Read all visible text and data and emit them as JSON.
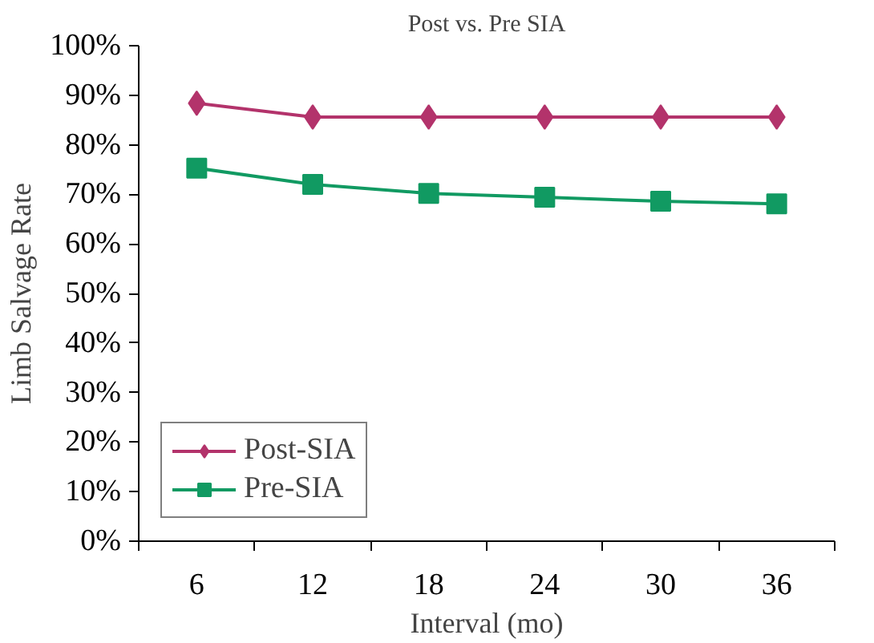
{
  "chart_data": {
    "type": "line",
    "title": "Post vs. Pre SIA",
    "xlabel": "Interval (mo)",
    "ylabel": "Limb Salvage Rate",
    "categories": [
      "6",
      "12",
      "18",
      "24",
      "30",
      "36"
    ],
    "series": [
      {
        "name": "Post-SIA",
        "color": "#b3336b",
        "marker": "diamond",
        "values": [
          88.4,
          85.6,
          85.6,
          85.6,
          85.6,
          85.6
        ]
      },
      {
        "name": "Pre-SIA",
        "color": "#119a62",
        "marker": "square",
        "values": [
          75.3,
          72.0,
          70.2,
          69.4,
          68.6,
          68.1
        ]
      }
    ],
    "ylim": [
      0,
      100
    ],
    "yticks": [
      {
        "value": 0,
        "label": "0%"
      },
      {
        "value": 10,
        "label": "10%"
      },
      {
        "value": 20,
        "label": "20%"
      },
      {
        "value": 30,
        "label": "30%"
      },
      {
        "value": 40,
        "label": "40%"
      },
      {
        "value": 50,
        "label": "50%"
      },
      {
        "value": 60,
        "label": "60%"
      },
      {
        "value": 70,
        "label": "70%"
      },
      {
        "value": 80,
        "label": "80%"
      },
      {
        "value": 90,
        "label": "90%"
      },
      {
        "value": 100,
        "label": "100%"
      }
    ],
    "grid": false,
    "legend": "bottom left",
    "line_style": "solid"
  }
}
